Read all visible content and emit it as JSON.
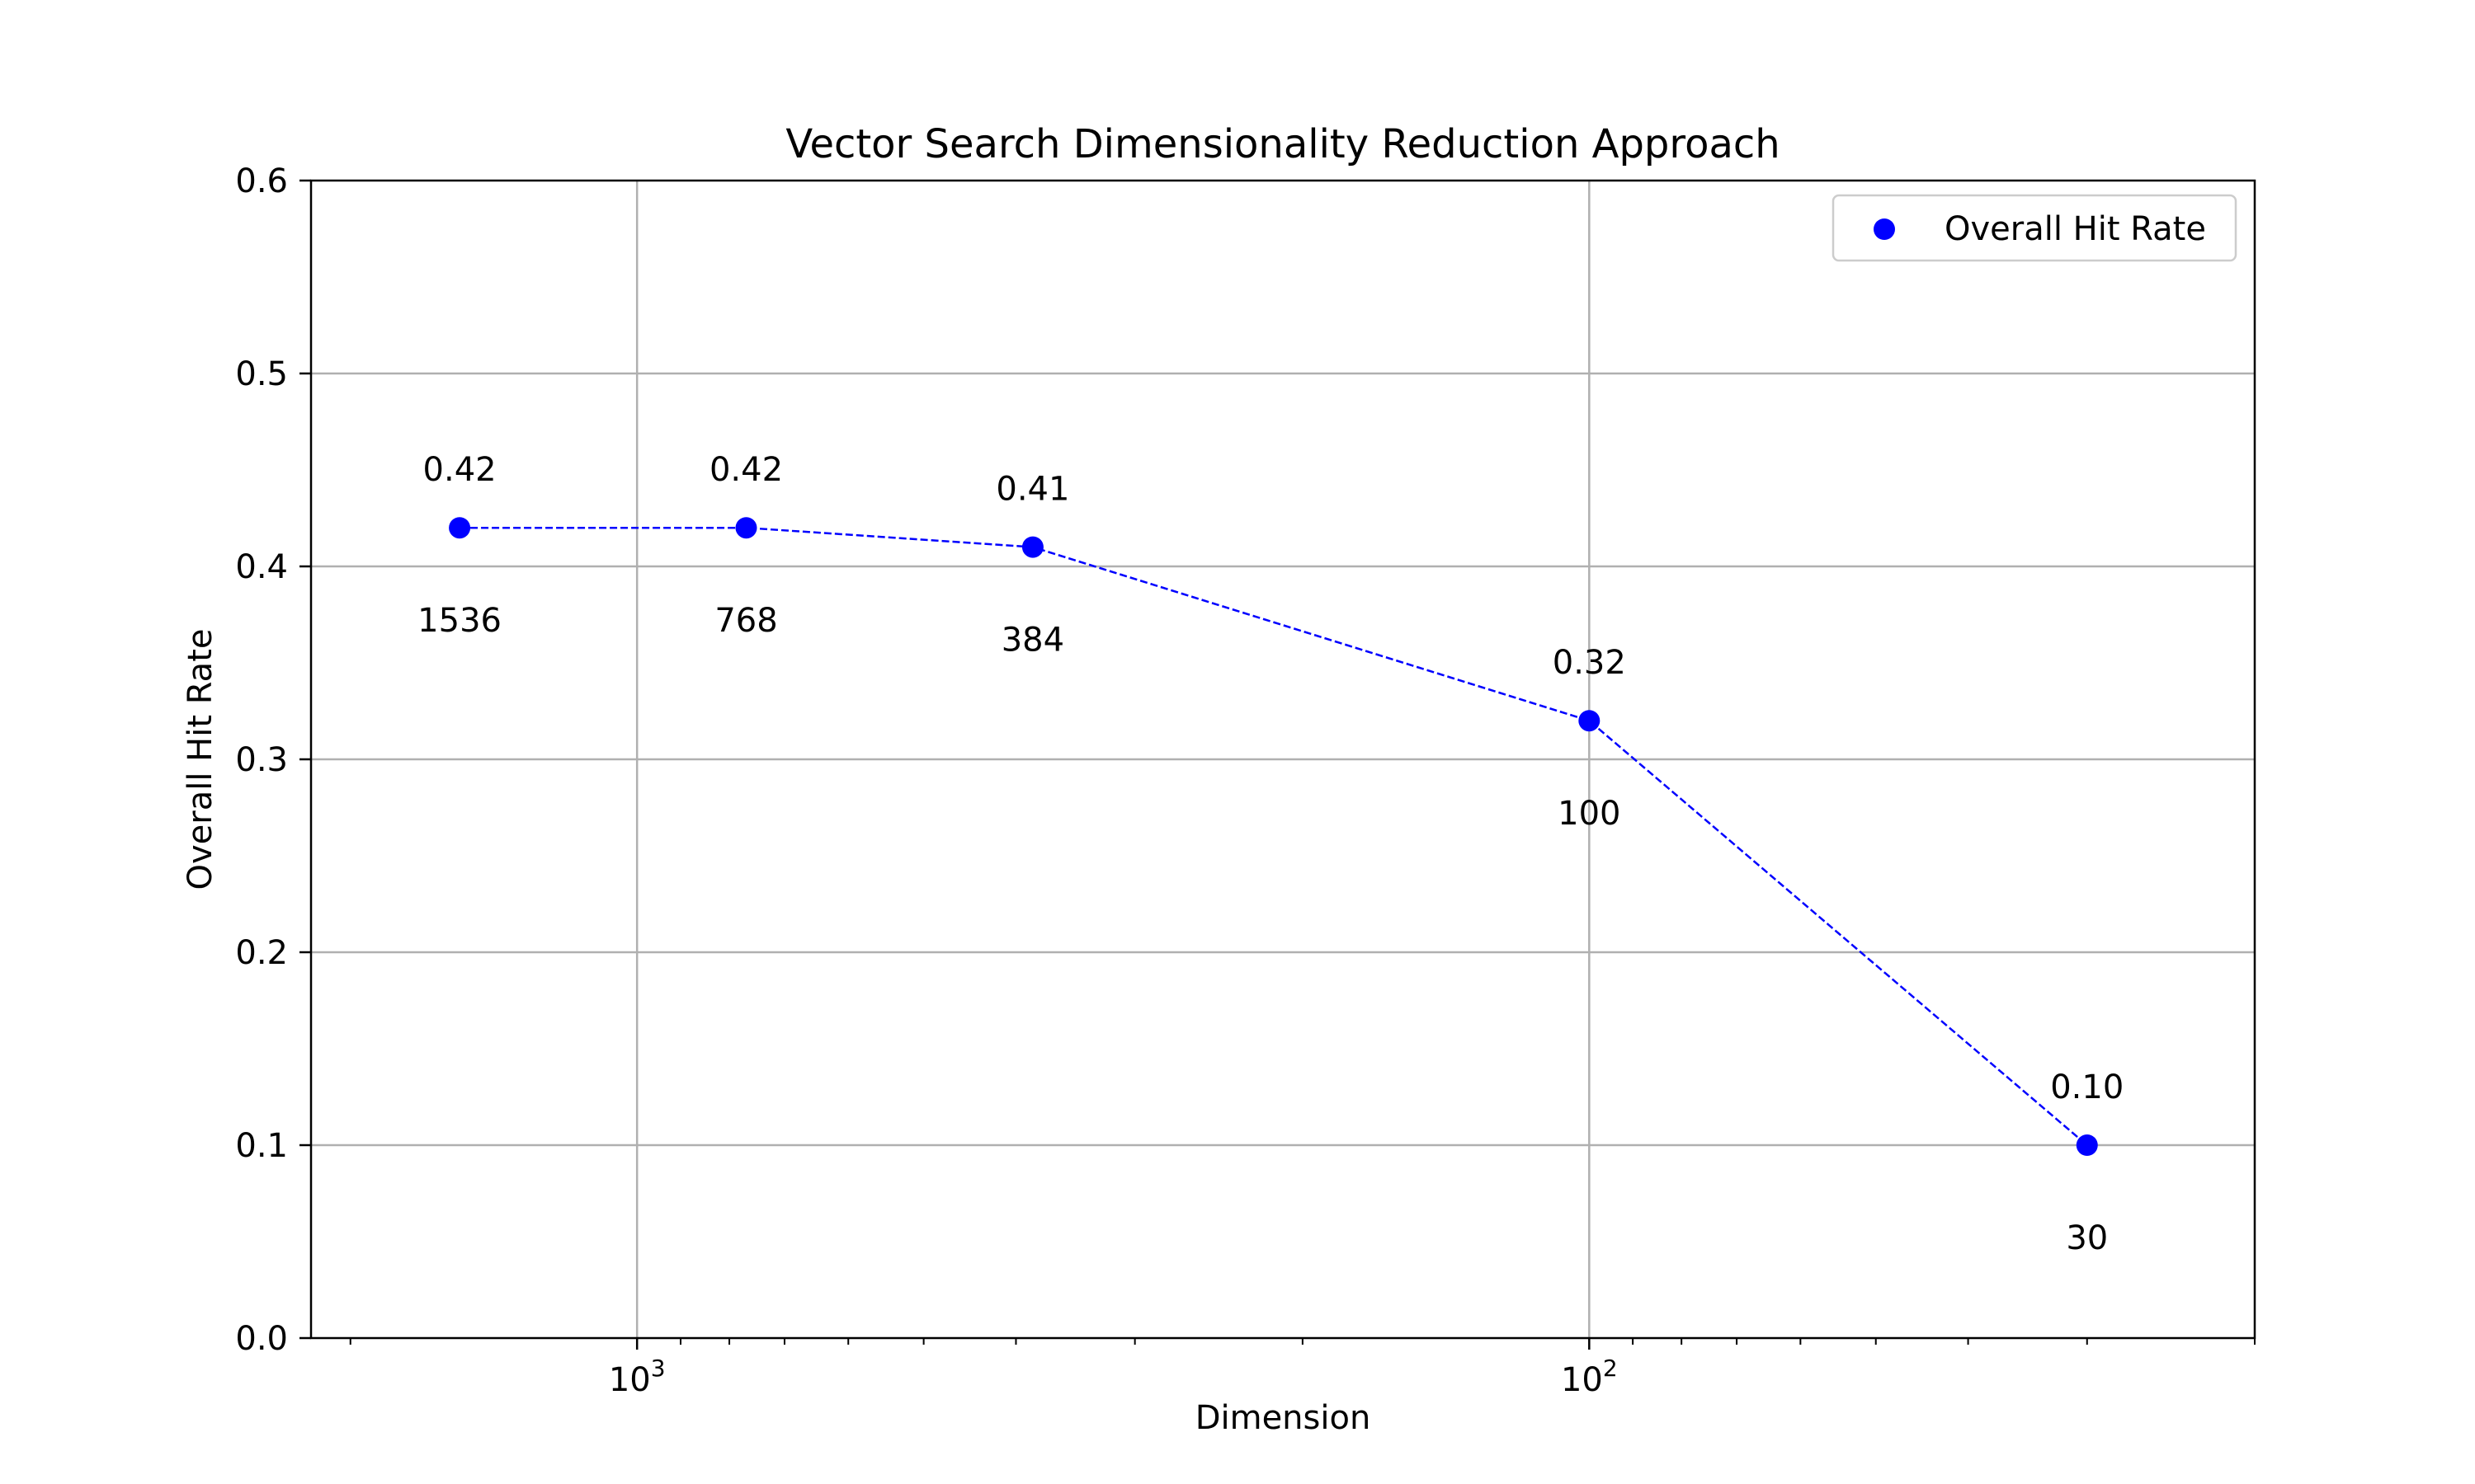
{
  "chart_data": {
    "type": "scatter",
    "title": "Vector Search Dimensionality Reduction Approach",
    "xlabel": "Dimension",
    "ylabel": "Overall Hit Rate",
    "x_scale": "log",
    "x_inverted": true,
    "xlim": [
      2200,
      20
    ],
    "ylim": [
      0.0,
      0.6
    ],
    "x_major_ticks": [
      {
        "value": 1000,
        "base": "10",
        "exponent": "3"
      },
      {
        "value": 100,
        "base": "10",
        "exponent": "2"
      }
    ],
    "x_minor_ticks": [
      2000,
      900,
      800,
      700,
      600,
      500,
      400,
      300,
      200,
      90,
      80,
      70,
      60,
      50,
      40,
      30,
      20
    ],
    "y_ticks": [
      "0.0",
      "0.1",
      "0.2",
      "0.3",
      "0.4",
      "0.5",
      "0.6"
    ],
    "grid": true,
    "legend": {
      "position": "top-right",
      "entries": [
        "Overall Hit Rate"
      ]
    },
    "series": [
      {
        "name": "Overall Hit Rate",
        "color": "#0000ff",
        "marker": "circle",
        "line_style": "dashed",
        "points": [
          {
            "x": 1536,
            "y": 0.42,
            "value_label": "0.42",
            "dimension_label": "1536"
          },
          {
            "x": 768,
            "y": 0.42,
            "value_label": "0.42",
            "dimension_label": "768"
          },
          {
            "x": 384,
            "y": 0.41,
            "value_label": "0.41",
            "dimension_label": "384"
          },
          {
            "x": 100,
            "y": 0.32,
            "value_label": "0.32",
            "dimension_label": "100"
          },
          {
            "x": 30,
            "y": 0.1,
            "value_label": "0.10",
            "dimension_label": "30"
          }
        ]
      }
    ]
  }
}
